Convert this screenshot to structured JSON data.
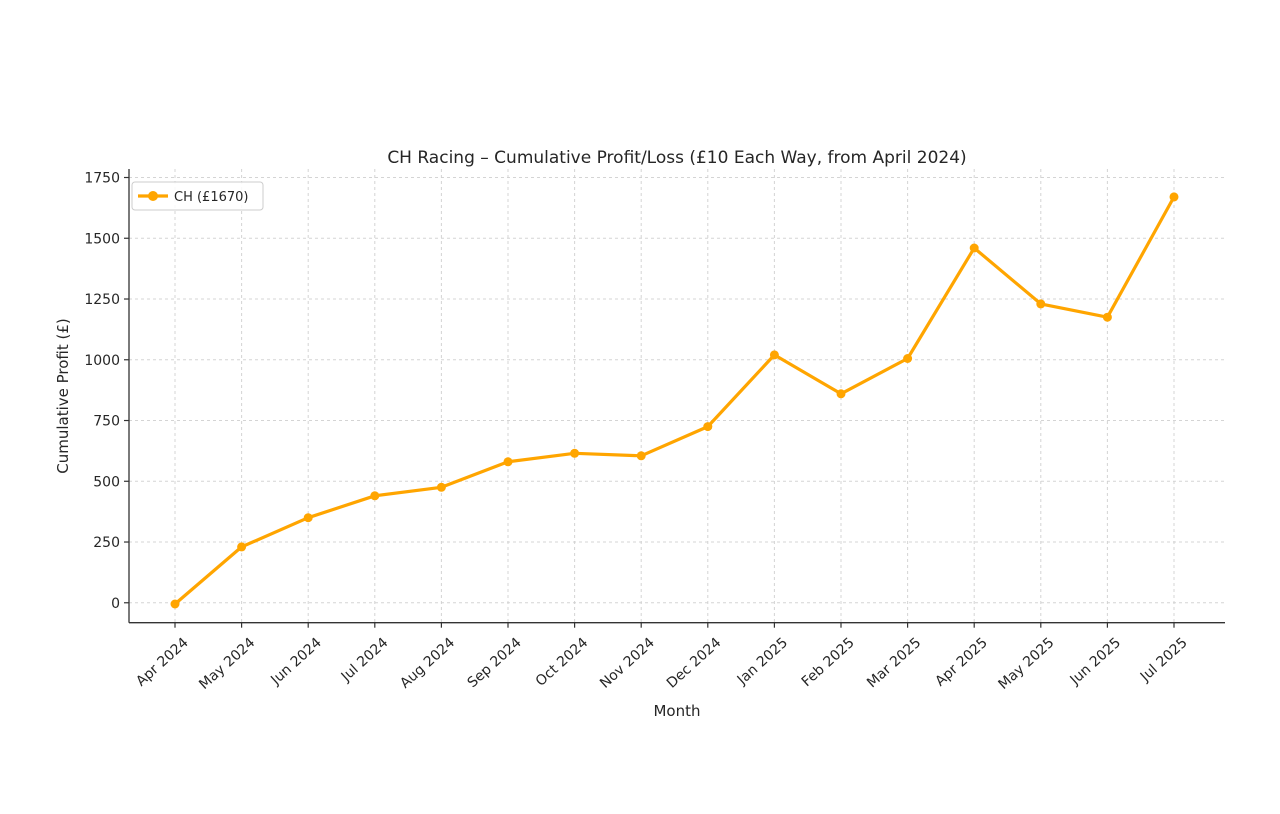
{
  "chart_data": {
    "type": "line",
    "title": "CH Racing – Cumulative Profit/Loss (£10 Each Way, from April 2024)",
    "xlabel": "Month",
    "ylabel": "Cumulative Profit (£)",
    "legend": {
      "position": "upper left",
      "entries": [
        {
          "label": "CH (£1670)",
          "color": "#FFA500"
        }
      ]
    },
    "categories": [
      "Apr 2024",
      "May 2024",
      "Jun 2024",
      "Jul 2024",
      "Aug 2024",
      "Sep 2024",
      "Oct 2024",
      "Nov 2024",
      "Dec 2024",
      "Jan 2025",
      "Feb 2025",
      "Mar 2025",
      "Apr 2025",
      "May 2025",
      "Jun 2025",
      "Jul 2025"
    ],
    "series": [
      {
        "name": "CH (£1670)",
        "color": "#FFA500",
        "values": [
          -5,
          230,
          350,
          440,
          475,
          580,
          615,
          605,
          725,
          1020,
          860,
          1005,
          1460,
          1230,
          1175,
          1670
        ]
      }
    ],
    "y_ticks": [
      0,
      250,
      500,
      750,
      1000,
      1250,
      1500,
      1750
    ],
    "ylim": [
      -82,
      1785
    ],
    "grid": true,
    "grid_style": "dashed",
    "colors": {
      "line": "#FFA500",
      "grid": "#cfcfcf",
      "spine": "#333333",
      "text": "#262626",
      "legend_border": "#cccccc",
      "background": "#ffffff"
    }
  }
}
